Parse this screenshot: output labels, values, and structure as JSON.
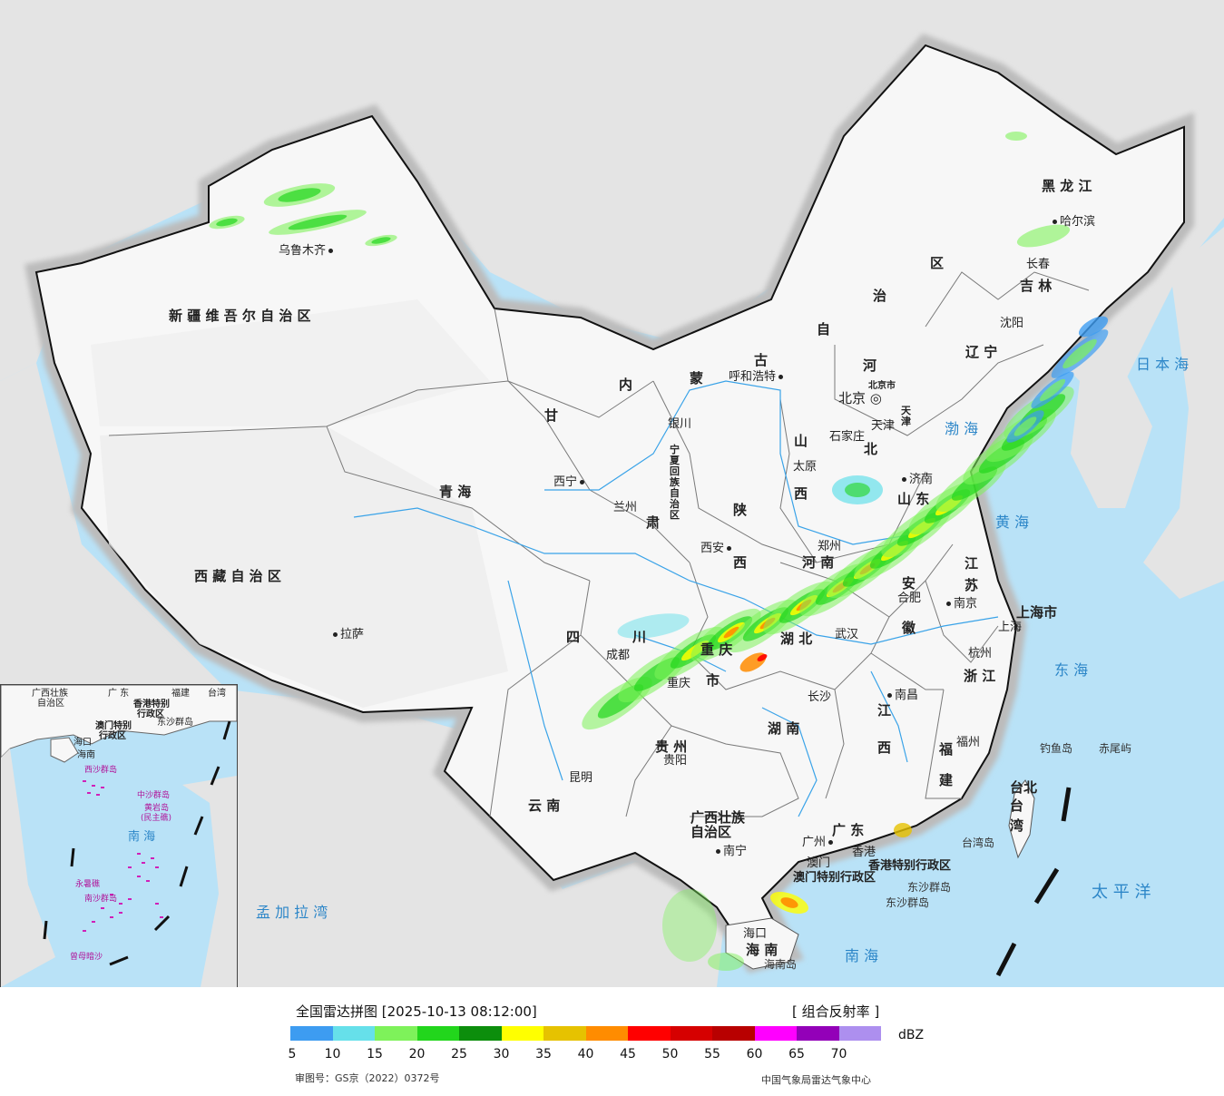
{
  "map": {
    "provinces": [
      {
        "name": "新 疆 维 吾 尔 自 治 区"
      },
      {
        "name": "西 藏 自 治 区"
      },
      {
        "name": "青 海"
      },
      {
        "name": "甘"
      },
      {
        "name": "肃"
      },
      {
        "name": "内"
      },
      {
        "name": "蒙"
      },
      {
        "name": "古"
      },
      {
        "name": "自"
      },
      {
        "name": "治"
      },
      {
        "name": "区"
      },
      {
        "name": "黑 龙 江"
      },
      {
        "name": "吉 林"
      },
      {
        "name": "辽 宁"
      },
      {
        "name": "河"
      },
      {
        "name": "北"
      },
      {
        "name": "山"
      },
      {
        "name": "西"
      },
      {
        "name": "山 东"
      },
      {
        "name": "陕"
      },
      {
        "name": "西"
      },
      {
        "name": "河 南"
      },
      {
        "name": "四"
      },
      {
        "name": "川"
      },
      {
        "name": "重 庆"
      },
      {
        "name": "市"
      },
      {
        "name": "湖 北"
      },
      {
        "name": "安"
      },
      {
        "name": "徽"
      },
      {
        "name": "江"
      },
      {
        "name": "苏"
      },
      {
        "name": "上海市"
      },
      {
        "name": "浙 江"
      },
      {
        "name": "江"
      },
      {
        "name": "西"
      },
      {
        "name": "湖 南"
      },
      {
        "name": "贵 州"
      },
      {
        "name": "云 南"
      },
      {
        "name": "广西壮族"
      },
      {
        "name": "自治区"
      },
      {
        "name": "广 东"
      },
      {
        "name": "福"
      },
      {
        "name": "建"
      },
      {
        "name": "台北"
      },
      {
        "name": "台"
      },
      {
        "name": "湾"
      },
      {
        "name": "海 南"
      },
      {
        "name": "宁夏回族自治区"
      },
      {
        "name": "北京市"
      },
      {
        "name": "天津"
      }
    ],
    "cities": [
      {
        "name": "乌鲁木齐"
      },
      {
        "name": "拉萨"
      },
      {
        "name": "西宁"
      },
      {
        "name": "兰州"
      },
      {
        "name": "银川"
      },
      {
        "name": "呼和浩特"
      },
      {
        "name": "北京"
      },
      {
        "name": "天津"
      },
      {
        "name": "石家庄"
      },
      {
        "name": "太原"
      },
      {
        "name": "济南"
      },
      {
        "name": "西安"
      },
      {
        "name": "郑州"
      },
      {
        "name": "合肥"
      },
      {
        "name": "南京"
      },
      {
        "name": "上海"
      },
      {
        "name": "杭州"
      },
      {
        "name": "武汉"
      },
      {
        "name": "成都"
      },
      {
        "name": "重庆"
      },
      {
        "name": "长沙"
      },
      {
        "name": "南昌"
      },
      {
        "name": "福州"
      },
      {
        "name": "贵阳"
      },
      {
        "name": "昆明"
      },
      {
        "name": "南宁"
      },
      {
        "name": "广州"
      },
      {
        "name": "香港"
      },
      {
        "name": "澳门"
      },
      {
        "name": "海口"
      },
      {
        "name": "沈阳"
      },
      {
        "name": "长春"
      },
      {
        "name": "哈尔滨"
      }
    ],
    "special_regions": [
      "香港特别行政区",
      "澳门特别行政区"
    ],
    "islands": [
      "钓鱼岛",
      "赤尾屿",
      "台湾岛",
      "东沙群岛",
      "海南岛"
    ],
    "seas": [
      "日 本 海",
      "渤 海",
      "黄 海",
      "东 海",
      "太 平 洋",
      "南 海",
      "孟 加 拉 湾"
    ],
    "inset": {
      "labels": [
        "广西壮族",
        "自治区",
        "广 东",
        "福建",
        "台湾",
        "香港特别",
        "行政区",
        "澳门特别",
        "行政区",
        "东沙群岛",
        "海口",
        "海南",
        "南 海"
      ],
      "island_groups": [
        "西沙群岛",
        "中沙群岛",
        "黄岩岛",
        "(民主礁)",
        "南沙群岛",
        "永暑礁",
        "曾母暗沙"
      ]
    }
  },
  "legend": {
    "title": "全国雷达拼图 [2025-10-13 08:12:00]",
    "product": "[ 组合反射率 ]",
    "unit": "dBZ",
    "colors": [
      "#3d9cf1",
      "#66e0ea",
      "#7ef25a",
      "#22d61c",
      "#0c8e0c",
      "#ffff00",
      "#e6c200",
      "#ff8c00",
      "#ff0000",
      "#d60000",
      "#b80000",
      "#ff00ff",
      "#9300b8",
      "#ad8fef"
    ],
    "ticks": [
      "5",
      "10",
      "15",
      "20",
      "25",
      "30",
      "35",
      "40",
      "45",
      "50",
      "55",
      "60",
      "65",
      "70"
    ],
    "review_number": "审图号：GS京（2022）0372号",
    "credit": "中国气象局雷达气象中心"
  }
}
